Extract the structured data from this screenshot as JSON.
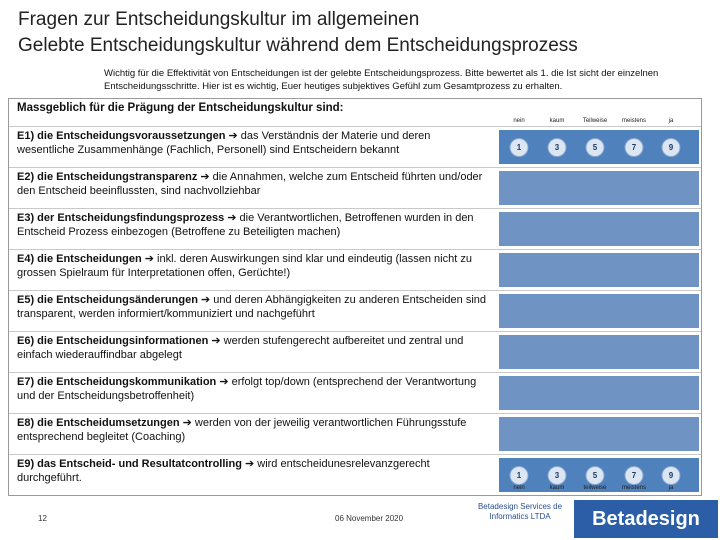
{
  "title_line1": "Fragen zur Entscheidungskultur im allgemeinen",
  "title_line2": "Gelebte Entscheidungskultur während dem Entscheidungsprozess",
  "intro": "Wichtig für die Effektivität von Entscheidungen ist der gelebte Entscheidungsprozess. Bitte bewertet als 1. die Ist sicht der einzelnen Entscheidungsschritte. Hier ist es wichtig, Euer heutiges subjektives Gefühl zum Gesamtprozess zu erhalten.",
  "heading": "Massgeblich für die Prägung der Entscheidungskultur sind:",
  "scale_top": [
    "nein",
    "kaum",
    "Teilweise",
    "meistens",
    "ja"
  ],
  "scale_bottom": [
    "nein",
    "kaum",
    "teilweise",
    "meistens",
    "ja"
  ],
  "scale_values": [
    "1",
    "3",
    "5",
    "7",
    "9"
  ],
  "rows": [
    {
      "label": "E1) die Entscheidungsvoraussetzungen",
      "text": " das Verständnis der Materie und deren wesentliche Zusammenhänge (Fachlich, Personell) sind Entscheidern bekannt"
    },
    {
      "label": "E2) die Entscheidungstransparenz",
      "text": " die Annahmen, welche zum Entscheid führten und/oder den Entscheid beeinflussten, sind nachvollziehbar"
    },
    {
      "label": "E3) der Entscheidungsfindungsprozess",
      "text": " die Verantwortlichen, Betroffenen wurden in den Entscheid Prozess einbezogen (Betroffene zu Beteiligten machen)"
    },
    {
      "label": "E4) die Entscheidungen",
      "text": " inkl. deren Auswirkungen sind klar und eindeutig (lassen nicht zu grossen Spielraum für Interpretationen offen, Gerüchte!)"
    },
    {
      "label": "E5) die Entscheidungsänderungen",
      "text": " und deren Abhängigkeiten zu anderen Entscheiden sind transparent, werden informiert/kommuniziert und nachgeführt"
    },
    {
      "label": "E6) die Entscheidungsinformationen",
      "text": " werden stufengerecht aufbereitet und zentral und einfach wiederauffindbar abgelegt"
    },
    {
      "label": "E7) die Entscheidungskommunikation",
      "text": " erfolgt top/down (entsprechend der Verantwortung und der Entscheidungsbetroffenheit)"
    },
    {
      "label": "E8) die Entscheidumsetzungen",
      "text": " werden von der jeweilig verantwortlichen Führungsstufe entsprechend begleitet (Coaching)"
    },
    {
      "label": "E9) das Entscheid- und Resultatcontrolling",
      "text": " wird entscheidunesrelevanzgerecht durchgeführt."
    }
  ],
  "arrow_symbol": "➔",
  "footer": {
    "page": "12",
    "date": "06 November 2020",
    "company": "Betadesign Services de Informatics LTDA",
    "logo": "Betadesign"
  },
  "colors": {
    "arrow": "#4f81bd",
    "logo_bg": "#2b5ea7"
  }
}
